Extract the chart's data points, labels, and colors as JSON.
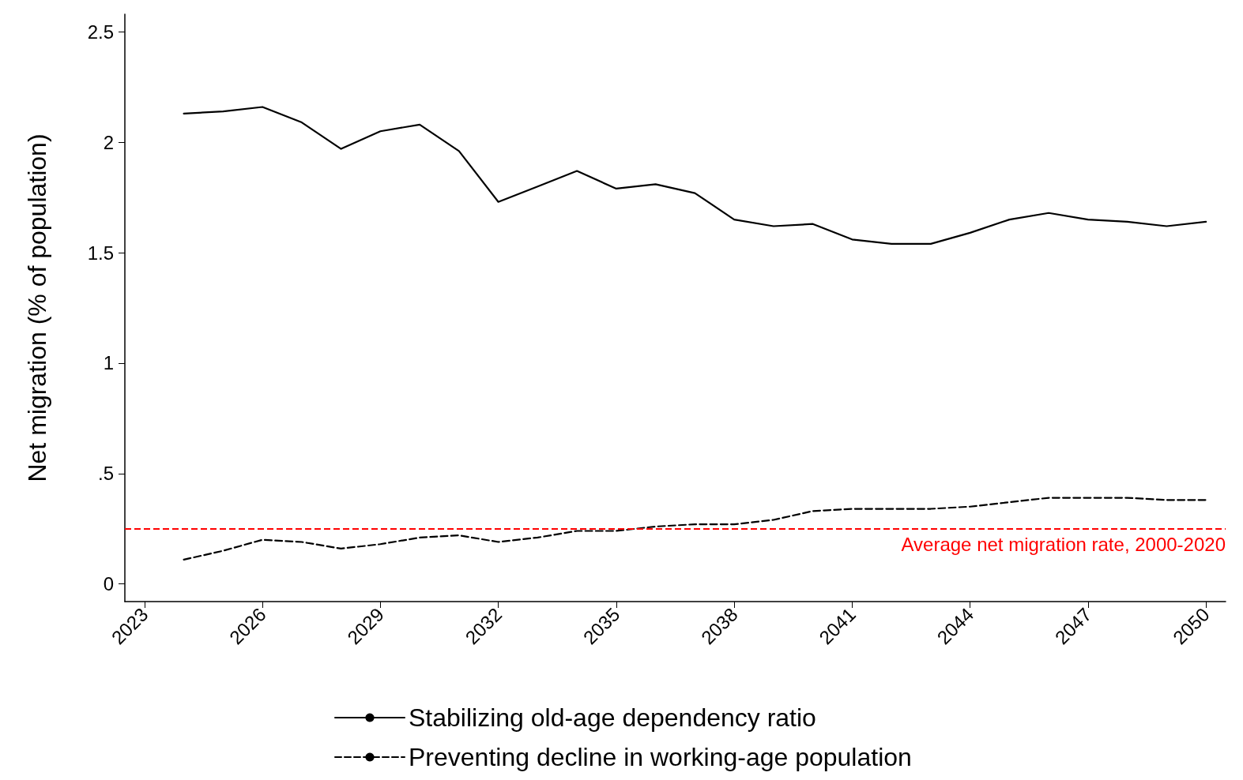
{
  "chart_data": {
    "type": "line",
    "ylabel": "Net migration (% of population)",
    "x": [
      2024,
      2025,
      2026,
      2027,
      2028,
      2029,
      2030,
      2031,
      2032,
      2033,
      2034,
      2035,
      2036,
      2037,
      2038,
      2039,
      2040,
      2041,
      2042,
      2043,
      2044,
      2045,
      2046,
      2047,
      2048,
      2049,
      2050
    ],
    "series": [
      {
        "name": "Stabilizing old-age dependency ratio",
        "color": "#000000",
        "line_style": "solid",
        "values": [
          2.13,
          2.14,
          2.16,
          2.09,
          1.97,
          2.05,
          2.08,
          1.96,
          1.73,
          1.8,
          1.87,
          1.79,
          1.81,
          1.77,
          1.65,
          1.62,
          1.63,
          1.56,
          1.54,
          1.54,
          1.59,
          1.65,
          1.68,
          1.65,
          1.64,
          1.62,
          1.64
        ]
      },
      {
        "name": "Preventing decline in working-age population",
        "color": "#000000",
        "line_style": "dashed",
        "values": [
          0.11,
          0.15,
          0.2,
          0.19,
          0.16,
          0.18,
          0.21,
          0.22,
          0.19,
          0.21,
          0.24,
          0.24,
          0.26,
          0.27,
          0.27,
          0.29,
          0.33,
          0.34,
          0.34,
          0.34,
          0.35,
          0.37,
          0.39,
          0.39,
          0.39,
          0.38,
          0.38
        ]
      }
    ],
    "xlim": [
      2022.5,
      2050.5
    ],
    "xticks": [
      2023,
      2026,
      2029,
      2032,
      2035,
      2038,
      2041,
      2044,
      2047,
      2050
    ],
    "ylim": [
      -0.08,
      2.58
    ],
    "yticks": [
      0,
      {
        "value": 0.5,
        "label": ".5"
      },
      1,
      1.5,
      2,
      2.5
    ],
    "ref_lines": [
      {
        "axis": "y",
        "value": 0.25,
        "label": "Average net migration rate, 2000-2020",
        "color": "#ff0000",
        "line_style": "dashed"
      }
    ],
    "grid": false,
    "legend": "bottom",
    "marker": "none"
  }
}
